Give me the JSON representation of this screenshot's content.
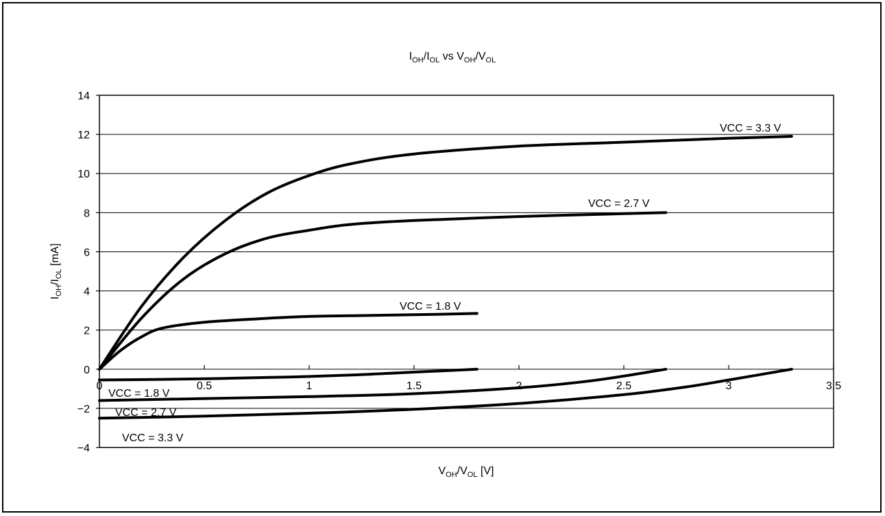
{
  "chart_data": {
    "type": "line",
    "title": {
      "parts": [
        {
          "text": "I"
        },
        {
          "text": "OH",
          "sub": true
        },
        {
          "text": "/I"
        },
        {
          "text": "OL",
          "sub": true
        },
        {
          "text": " vs V"
        },
        {
          "text": "OH",
          "sub": true
        },
        {
          "text": "/V"
        },
        {
          "text": "OL",
          "sub": true
        }
      ]
    },
    "xlabel": {
      "parts": [
        {
          "text": "V"
        },
        {
          "text": "OH",
          "sub": true
        },
        {
          "text": "/V"
        },
        {
          "text": "OL",
          "sub": true
        },
        {
          "text": " [V]"
        }
      ]
    },
    "ylabel": {
      "parts": [
        {
          "text": "I"
        },
        {
          "text": "OH",
          "sub": true
        },
        {
          "text": "/I"
        },
        {
          "text": "OL",
          "sub": true
        },
        {
          "text": " [mA]"
        }
      ]
    },
    "xlim": [
      0,
      3.5
    ],
    "ylim": [
      -4,
      14
    ],
    "x_ticks": [
      0,
      0.5,
      1,
      1.5,
      2,
      2.5,
      3,
      3.5
    ],
    "x_tick_labels": [
      "0",
      "0.5",
      "1",
      "1.5",
      "2",
      "2.5",
      "3",
      "3.5"
    ],
    "y_ticks": [
      -4,
      -2,
      0,
      2,
      4,
      6,
      8,
      10,
      12,
      14
    ],
    "y_tick_labels": [
      "−4",
      "−2",
      "0",
      "2",
      "4",
      "6",
      "8",
      "10",
      "12",
      "14"
    ],
    "grid": "horizontal",
    "series": [
      {
        "name": "VCC = 3.3 V",
        "group": "source",
        "x": [
          0,
          0.2,
          0.4,
          0.6,
          0.8,
          1.0,
          1.2,
          1.5,
          2.0,
          2.5,
          3.0,
          3.3
        ],
        "y": [
          0,
          3.2,
          5.7,
          7.6,
          9.0,
          9.9,
          10.5,
          11.0,
          11.4,
          11.6,
          11.8,
          11.9
        ]
      },
      {
        "name": "VCC = 2.7 V",
        "group": "source",
        "x": [
          0,
          0.2,
          0.4,
          0.6,
          0.8,
          1.0,
          1.2,
          1.5,
          2.0,
          2.5,
          2.7
        ],
        "y": [
          0,
          2.6,
          4.6,
          5.9,
          6.7,
          7.1,
          7.4,
          7.6,
          7.8,
          7.95,
          8.0
        ]
      },
      {
        "name": "VCC = 1.8 V",
        "group": "source",
        "x": [
          0,
          0.1,
          0.2,
          0.3,
          0.5,
          0.8,
          1.0,
          1.3,
          1.6,
          1.8
        ],
        "y": [
          0,
          0.95,
          1.65,
          2.1,
          2.4,
          2.6,
          2.7,
          2.75,
          2.8,
          2.85
        ]
      },
      {
        "name": "VCC = 1.8 V",
        "group": "sink",
        "x": [
          0,
          0.3,
          0.6,
          0.9,
          1.2,
          1.4,
          1.6,
          1.8
        ],
        "y": [
          -0.55,
          -0.52,
          -0.47,
          -0.4,
          -0.3,
          -0.2,
          -0.1,
          0
        ]
      },
      {
        "name": "VCC = 2.7 V",
        "group": "sink",
        "x": [
          0,
          0.5,
          1.0,
          1.5,
          2.0,
          2.3,
          2.5,
          2.7
        ],
        "y": [
          -1.6,
          -1.5,
          -1.4,
          -1.25,
          -0.95,
          -0.65,
          -0.35,
          0
        ]
      },
      {
        "name": "VCC = 3.3 V",
        "group": "sink",
        "x": [
          0,
          0.5,
          1.0,
          1.5,
          2.0,
          2.5,
          2.8,
          3.0,
          3.3
        ],
        "y": [
          -2.5,
          -2.4,
          -2.25,
          -2.05,
          -1.75,
          -1.3,
          -0.9,
          -0.55,
          0
        ]
      }
    ],
    "colors": {
      "line": "#000000",
      "grid": "#000000",
      "background": "#ffffff"
    }
  }
}
